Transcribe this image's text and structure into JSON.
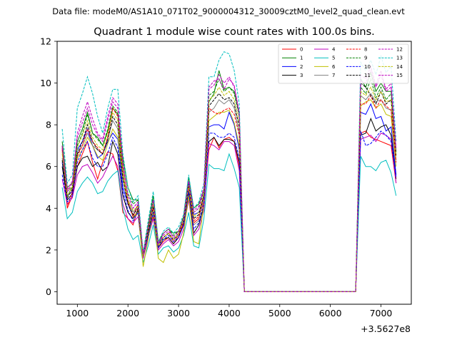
{
  "suptitle": "Data file: modeM0/AS1A10_071T02_9000004312_30009cztM0_level2_quad_clean.evt",
  "chart_data": {
    "type": "line",
    "title": "Quadrant 1 module wise count rates with 100.0s bins.",
    "xlabel": "",
    "ylabel": "",
    "x_offset_label": "+3.5627e8",
    "xlim": [
      600,
      7600
    ],
    "ylim": [
      -0.6,
      12
    ],
    "xticks": [
      1000,
      2000,
      3000,
      4000,
      5000,
      6000,
      7000
    ],
    "xtick_labels": [
      "1000",
      "2000",
      "3000",
      "4000",
      "5000",
      "6000",
      "7000"
    ],
    "yticks": [
      0,
      2,
      4,
      6,
      8,
      10,
      12
    ],
    "ytick_labels": [
      "0",
      "2",
      "4",
      "6",
      "8",
      "10",
      "12"
    ],
    "grid": false,
    "legend_position": "top-right",
    "x": [
      700,
      800,
      900,
      1000,
      1100,
      1200,
      1300,
      1400,
      1500,
      1600,
      1700,
      1800,
      1900,
      2000,
      2100,
      2200,
      2300,
      2400,
      2500,
      2600,
      2700,
      2800,
      2900,
      3000,
      3100,
      3200,
      3300,
      3400,
      3500,
      3600,
      3700,
      3800,
      3900,
      4000,
      4100,
      4200,
      4300,
      4400,
      4500,
      4600,
      4700,
      4800,
      4900,
      5000,
      5100,
      5200,
      5300,
      5400,
      5500,
      5600,
      5700,
      5800,
      5900,
      6000,
      6100,
      6200,
      6300,
      6400,
      6500,
      6600,
      6700,
      6800,
      6900,
      7000,
      7100,
      7200,
      7300
    ],
    "series": [
      {
        "name": "0",
        "color": "#ff0000",
        "dash": "solid",
        "values": [
          6.8,
          4.0,
          4.6,
          6.0,
          6.6,
          7.2,
          6.2,
          5.4,
          6.2,
          6.7,
          6.6,
          5.8,
          3.8,
          3.5,
          3.2,
          4.0,
          1.6,
          2.8,
          3.6,
          2.1,
          2.4,
          2.6,
          2.3,
          2.6,
          3.3,
          4.6,
          3.3,
          3.5,
          4.3,
          6.8,
          7.4,
          6.9,
          7.3,
          7.4,
          7.2,
          6.0,
          0.0,
          0.0,
          0.0,
          0.0,
          0.0,
          0.0,
          0.0,
          0.0,
          0.0,
          0.0,
          0.0,
          0.0,
          0.0,
          0.0,
          0.0,
          0.0,
          0.0,
          0.0,
          0.0,
          0.0,
          0.0,
          0.0,
          0.0,
          7.6,
          7.7,
          7.4,
          7.3,
          7.2,
          7.1,
          7.0,
          5.2
        ]
      },
      {
        "name": "1",
        "color": "#008000",
        "dash": "solid",
        "values": [
          7.2,
          5.0,
          5.2,
          7.2,
          7.8,
          8.6,
          7.6,
          7.4,
          7.0,
          7.7,
          8.8,
          8.5,
          6.4,
          5.0,
          4.4,
          4.4,
          1.8,
          3.2,
          4.6,
          2.4,
          2.8,
          3.0,
          2.8,
          2.9,
          3.6,
          5.5,
          4.0,
          4.2,
          4.9,
          9.1,
          9.5,
          10.6,
          9.7,
          9.8,
          9.6,
          8.5,
          0.0,
          0.0,
          0.0,
          0.0,
          0.0,
          0.0,
          0.0,
          0.0,
          0.0,
          0.0,
          0.0,
          0.0,
          0.0,
          0.0,
          0.0,
          0.0,
          0.0,
          0.0,
          0.0,
          0.0,
          0.0,
          0.0,
          0.0,
          10.2,
          9.8,
          10.5,
          9.6,
          10.0,
          9.6,
          9.6,
          6.7
        ]
      },
      {
        "name": "2",
        "color": "#0000ff",
        "dash": "solid",
        "values": [
          6.2,
          4.6,
          4.8,
          6.8,
          7.2,
          7.8,
          7.0,
          6.4,
          6.6,
          7.2,
          7.6,
          7.3,
          5.0,
          4.2,
          3.6,
          4.2,
          1.8,
          2.9,
          4.2,
          2.3,
          2.6,
          2.8,
          2.5,
          2.7,
          3.4,
          5.2,
          3.7,
          3.8,
          4.6,
          7.9,
          8.0,
          8.0,
          7.8,
          8.6,
          8.0,
          6.8,
          0.0,
          0.0,
          0.0,
          0.0,
          0.0,
          0.0,
          0.0,
          0.0,
          0.0,
          0.0,
          0.0,
          0.0,
          0.0,
          0.0,
          0.0,
          0.0,
          0.0,
          0.0,
          0.0,
          0.0,
          0.0,
          0.0,
          0.0,
          8.6,
          8.5,
          9.0,
          8.3,
          8.4,
          7.7,
          7.9,
          5.6
        ]
      },
      {
        "name": "3",
        "color": "#000000",
        "dash": "solid",
        "values": [
          6.0,
          4.4,
          4.7,
          6.0,
          6.4,
          6.5,
          6.0,
          6.2,
          5.8,
          6.0,
          7.2,
          6.6,
          4.6,
          3.8,
          3.5,
          3.9,
          1.7,
          2.8,
          3.8,
          2.1,
          2.5,
          2.6,
          2.3,
          2.6,
          3.2,
          4.8,
          2.8,
          3.2,
          4.1,
          7.2,
          7.4,
          7.0,
          7.3,
          7.3,
          7.2,
          6.2,
          0.0,
          0.0,
          0.0,
          0.0,
          0.0,
          0.0,
          0.0,
          0.0,
          0.0,
          0.0,
          0.0,
          0.0,
          0.0,
          0.0,
          0.0,
          0.0,
          0.0,
          0.0,
          0.0,
          0.0,
          0.0,
          0.0,
          0.0,
          7.5,
          7.6,
          8.3,
          7.7,
          7.9,
          8.0,
          7.5,
          5.4
        ]
      },
      {
        "name": "4",
        "color": "#bf00bf",
        "dash": "solid",
        "values": [
          5.4,
          4.2,
          4.5,
          5.6,
          6.0,
          6.1,
          5.7,
          5.2,
          5.5,
          6.0,
          6.5,
          6.0,
          4.2,
          3.5,
          3.3,
          3.6,
          1.6,
          2.6,
          3.5,
          2.0,
          2.3,
          2.5,
          2.2,
          2.4,
          3.0,
          4.4,
          2.7,
          3.0,
          3.9,
          7.1,
          7.0,
          6.8,
          7.2,
          7.2,
          7.0,
          5.8,
          0.0,
          0.0,
          0.0,
          0.0,
          0.0,
          0.0,
          0.0,
          0.0,
          0.0,
          0.0,
          0.0,
          0.0,
          0.0,
          0.0,
          0.0,
          0.0,
          0.0,
          0.0,
          0.0,
          0.0,
          0.0,
          0.0,
          0.0,
          7.3,
          7.4,
          7.5,
          7.2,
          7.6,
          7.5,
          7.3,
          5.2
        ]
      },
      {
        "name": "5",
        "color": "#00bfbf",
        "dash": "solid",
        "values": [
          5.0,
          3.5,
          3.8,
          4.8,
          5.2,
          5.5,
          5.2,
          4.7,
          4.8,
          5.3,
          5.6,
          5.8,
          4.0,
          3.0,
          2.5,
          2.7,
          1.4,
          2.2,
          3.2,
          1.8,
          2.1,
          2.2,
          1.9,
          2.1,
          2.7,
          3.8,
          2.2,
          2.1,
          3.5,
          6.1,
          5.9,
          5.9,
          5.8,
          6.6,
          5.9,
          5.0,
          0.0,
          0.0,
          0.0,
          0.0,
          0.0,
          0.0,
          0.0,
          0.0,
          0.0,
          0.0,
          0.0,
          0.0,
          0.0,
          0.0,
          0.0,
          0.0,
          0.0,
          0.0,
          0.0,
          0.0,
          0.0,
          0.0,
          0.0,
          6.5,
          6.0,
          6.0,
          5.8,
          6.2,
          6.3,
          5.7,
          4.6
        ]
      },
      {
        "name": "6",
        "color": "#bfbf00",
        "dash": "solid",
        "values": [
          6.6,
          4.9,
          5.0,
          6.4,
          6.8,
          7.4,
          7.0,
          6.5,
          6.3,
          7.1,
          7.8,
          7.4,
          5.4,
          4.3,
          3.6,
          3.8,
          1.2,
          2.5,
          3.8,
          1.6,
          1.4,
          2.0,
          1.6,
          1.8,
          2.8,
          4.6,
          2.4,
          2.3,
          4.2,
          8.2,
          8.4,
          8.6,
          8.6,
          8.7,
          8.1,
          7.0,
          0.0,
          0.0,
          0.0,
          0.0,
          0.0,
          0.0,
          0.0,
          0.0,
          0.0,
          0.0,
          0.0,
          0.0,
          0.0,
          0.0,
          0.0,
          0.0,
          0.0,
          0.0,
          0.0,
          0.0,
          0.0,
          0.0,
          0.0,
          8.9,
          9.1,
          9.2,
          8.8,
          9.0,
          8.5,
          8.4,
          6.0
        ]
      },
      {
        "name": "7",
        "color": "#808080",
        "dash": "solid",
        "values": [
          6.4,
          4.8,
          5.0,
          6.6,
          7.0,
          7.6,
          7.0,
          6.8,
          6.6,
          7.3,
          8.2,
          7.8,
          5.6,
          4.4,
          3.8,
          4.1,
          1.7,
          2.9,
          4.0,
          2.2,
          2.6,
          2.8,
          2.5,
          2.7,
          3.4,
          5.0,
          3.2,
          3.4,
          4.5,
          8.6,
          8.8,
          9.2,
          9.0,
          9.2,
          8.8,
          7.6,
          0.0,
          0.0,
          0.0,
          0.0,
          0.0,
          0.0,
          0.0,
          0.0,
          0.0,
          0.0,
          0.0,
          0.0,
          0.0,
          0.0,
          0.0,
          0.0,
          0.0,
          0.0,
          0.0,
          0.0,
          0.0,
          0.0,
          0.0,
          9.4,
          9.2,
          9.5,
          9.1,
          9.2,
          8.8,
          8.7,
          6.3
        ]
      },
      {
        "name": "8",
        "color": "#ff0000",
        "dash": "dashed",
        "values": [
          6.9,
          4.1,
          4.8,
          6.5,
          7.0,
          7.8,
          7.2,
          6.9,
          6.6,
          7.4,
          8.8,
          8.4,
          5.8,
          4.3,
          3.6,
          4.2,
          1.7,
          3.0,
          4.0,
          2.2,
          2.6,
          2.8,
          2.4,
          2.7,
          3.4,
          5.0,
          3.4,
          3.6,
          4.6,
          8.8,
          8.6,
          8.5,
          8.7,
          8.8,
          8.5,
          7.5,
          0.0,
          0.0,
          0.0,
          0.0,
          0.0,
          0.0,
          0.0,
          0.0,
          0.0,
          0.0,
          0.0,
          0.0,
          0.0,
          0.0,
          0.0,
          0.0,
          0.0,
          0.0,
          0.0,
          0.0,
          0.0,
          0.0,
          0.0,
          9.0,
          9.0,
          9.4,
          8.8,
          9.2,
          8.9,
          8.7,
          6.2
        ]
      },
      {
        "name": "9",
        "color": "#008000",
        "dash": "dashed",
        "values": [
          7.0,
          4.6,
          5.0,
          7.0,
          7.6,
          8.5,
          7.6,
          7.3,
          7.0,
          7.8,
          8.9,
          8.6,
          6.0,
          4.7,
          4.2,
          4.4,
          1.8,
          3.1,
          4.4,
          2.3,
          2.8,
          3.0,
          2.7,
          2.9,
          3.5,
          5.3,
          3.8,
          4.0,
          4.8,
          9.4,
          9.6,
          10.2,
          9.6,
          9.8,
          9.5,
          8.4,
          0.0,
          0.0,
          0.0,
          0.0,
          0.0,
          0.0,
          0.0,
          0.0,
          0.0,
          0.0,
          0.0,
          0.0,
          0.0,
          0.0,
          0.0,
          0.0,
          0.0,
          0.0,
          0.0,
          0.0,
          0.0,
          0.0,
          0.0,
          9.8,
          9.5,
          10.2,
          9.3,
          9.8,
          9.2,
          9.5,
          6.6
        ]
      },
      {
        "name": "10",
        "color": "#0000ff",
        "dash": "dashed",
        "values": [
          5.6,
          4.3,
          4.6,
          6.2,
          6.8,
          7.2,
          6.4,
          6.0,
          6.0,
          6.6,
          7.4,
          6.9,
          4.8,
          3.9,
          3.4,
          3.8,
          1.7,
          2.7,
          3.8,
          2.1,
          2.5,
          2.7,
          2.4,
          2.6,
          3.2,
          4.8,
          3.0,
          3.3,
          4.2,
          7.6,
          7.6,
          7.4,
          7.4,
          7.6,
          7.4,
          6.4,
          0.0,
          0.0,
          0.0,
          0.0,
          0.0,
          0.0,
          0.0,
          0.0,
          0.0,
          0.0,
          0.0,
          0.0,
          0.0,
          0.0,
          0.0,
          0.0,
          0.0,
          0.0,
          0.0,
          0.0,
          0.0,
          0.0,
          0.0,
          7.7,
          7.0,
          7.1,
          7.4,
          7.7,
          7.5,
          7.2,
          5.5
        ]
      },
      {
        "name": "11",
        "color": "#000000",
        "dash": "dashed",
        "values": [
          6.3,
          4.5,
          4.9,
          6.6,
          7.2,
          8.0,
          7.2,
          6.8,
          6.6,
          7.3,
          8.4,
          8.0,
          5.4,
          4.2,
          3.7,
          4.0,
          1.8,
          2.9,
          4.1,
          2.2,
          2.6,
          2.8,
          2.5,
          2.8,
          3.4,
          5.1,
          3.5,
          3.7,
          4.6,
          8.9,
          9.2,
          9.5,
          9.2,
          9.3,
          9.0,
          7.9,
          0.0,
          0.0,
          0.0,
          0.0,
          0.0,
          0.0,
          0.0,
          0.0,
          0.0,
          0.0,
          0.0,
          0.0,
          0.0,
          0.0,
          0.0,
          0.0,
          0.0,
          0.0,
          0.0,
          0.0,
          0.0,
          0.0,
          0.0,
          10.0,
          9.8,
          9.4,
          9.0,
          9.6,
          9.0,
          9.2,
          6.5
        ]
      },
      {
        "name": "12",
        "color": "#bf00bf",
        "dash": "dashed",
        "values": [
          7.0,
          4.8,
          5.2,
          7.6,
          8.4,
          9.1,
          8.3,
          7.6,
          7.3,
          8.4,
          9.3,
          9.0,
          6.2,
          4.6,
          4.0,
          4.3,
          1.8,
          3.1,
          4.4,
          2.3,
          2.7,
          2.9,
          2.6,
          2.9,
          3.5,
          5.3,
          3.8,
          4.0,
          4.9,
          9.8,
          10.1,
          10.2,
          9.7,
          10.2,
          9.9,
          8.6,
          0.0,
          0.0,
          0.0,
          0.0,
          0.0,
          0.0,
          0.0,
          0.0,
          0.0,
          0.0,
          0.0,
          0.0,
          0.0,
          0.0,
          0.0,
          0.0,
          0.0,
          0.0,
          0.0,
          0.0,
          0.0,
          0.0,
          0.0,
          10.1,
          10.0,
          10.6,
          9.8,
          10.4,
          9.6,
          9.8,
          6.8
        ]
      },
      {
        "name": "13",
        "color": "#00bfbf",
        "dash": "dashed",
        "values": [
          7.8,
          5.2,
          5.6,
          8.8,
          9.5,
          10.3,
          9.5,
          8.4,
          7.6,
          8.8,
          9.7,
          9.7,
          6.6,
          5.0,
          4.3,
          4.6,
          1.9,
          3.4,
          4.8,
          2.4,
          2.9,
          3.1,
          2.8,
          3.1,
          3.7,
          5.6,
          4.0,
          4.3,
          5.2,
          10.3,
          10.3,
          11.1,
          11.5,
          11.4,
          10.6,
          9.0,
          0.0,
          0.0,
          0.0,
          0.0,
          0.0,
          0.0,
          0.0,
          0.0,
          0.0,
          0.0,
          0.0,
          0.0,
          0.0,
          0.0,
          0.0,
          0.0,
          0.0,
          0.0,
          0.0,
          0.0,
          0.0,
          0.0,
          0.0,
          11.0,
          10.6,
          11.1,
          10.4,
          11.3,
          10.5,
          10.8,
          7.2
        ]
      },
      {
        "name": "14",
        "color": "#bfbf00",
        "dash": "dashed",
        "values": [
          6.7,
          4.6,
          5.0,
          6.9,
          7.5,
          8.2,
          7.4,
          7.0,
          6.8,
          7.6,
          8.6,
          8.2,
          5.7,
          4.4,
          3.9,
          4.1,
          1.7,
          3.0,
          4.2,
          2.2,
          2.6,
          2.8,
          2.5,
          2.8,
          3.4,
          5.1,
          3.6,
          3.8,
          4.7,
          9.2,
          9.4,
          9.8,
          9.4,
          9.6,
          9.2,
          8.1,
          0.0,
          0.0,
          0.0,
          0.0,
          0.0,
          0.0,
          0.0,
          0.0,
          0.0,
          0.0,
          0.0,
          0.0,
          0.0,
          0.0,
          0.0,
          0.0,
          0.0,
          0.0,
          0.0,
          0.0,
          0.0,
          0.0,
          0.0,
          9.6,
          9.4,
          9.8,
          9.2,
          9.6,
          9.1,
          9.2,
          6.5
        ]
      },
      {
        "name": "15",
        "color": "#bf00bf",
        "dash": "dashed",
        "values": [
          6.9,
          4.9,
          5.3,
          7.4,
          8.1,
          8.8,
          8.0,
          7.5,
          7.2,
          8.2,
          9.1,
          8.8,
          6.1,
          4.6,
          4.0,
          4.3,
          1.8,
          3.1,
          4.4,
          2.3,
          2.8,
          3.0,
          2.6,
          2.9,
          3.5,
          5.3,
          3.9,
          4.1,
          5.0,
          9.7,
          9.9,
          10.4,
          10.0,
          10.3,
          9.8,
          8.5,
          0.0,
          0.0,
          0.0,
          0.0,
          0.0,
          0.0,
          0.0,
          0.0,
          0.0,
          0.0,
          0.0,
          0.0,
          0.0,
          0.0,
          0.0,
          0.0,
          0.0,
          0.0,
          0.0,
          0.0,
          0.0,
          0.0,
          0.0,
          10.4,
          10.2,
          10.8,
          9.9,
          10.6,
          9.7,
          10.0,
          6.9
        ]
      }
    ]
  }
}
